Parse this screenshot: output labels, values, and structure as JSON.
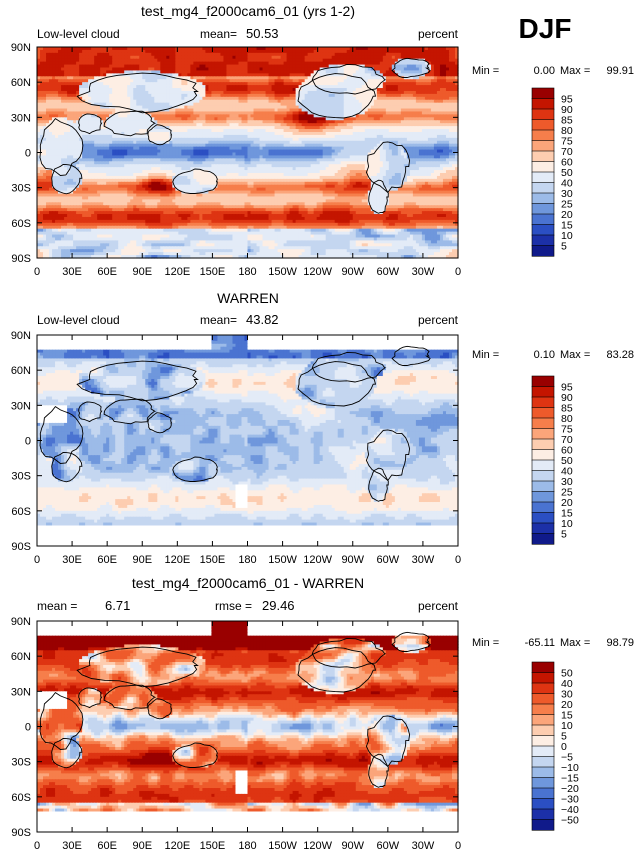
{
  "season_label": "DJF",
  "chart_data": [
    {
      "type": "heatmap",
      "title": "test_mg4_f2000cam6_01 (yrs 1-2)",
      "left_label": "Low-level cloud",
      "mean_label": "mean=",
      "mean_value": "50.53",
      "units": "percent",
      "min_label": "Min =",
      "min_value": "0.00",
      "max_label": "Max =",
      "max_value": "99.91",
      "colorbar_levels": [
        "95",
        "90",
        "85",
        "80",
        "75",
        "70",
        "60",
        "50",
        "40",
        "30",
        "25",
        "20",
        "15",
        "10",
        "5"
      ],
      "colorbar_colors": [
        "#990000",
        "#c41500",
        "#de3412",
        "#ee5a2b",
        "#f67e4b",
        "#fba57a",
        "#fdcdb0",
        "#fdeee4",
        "#e3ebf7",
        "#c4d6f0",
        "#9cbbe8",
        "#6f97dc",
        "#4a73d1",
        "#2b4fc3",
        "#1c30a8",
        "#101a8a"
      ],
      "field": "model_lowcloud"
    },
    {
      "type": "heatmap",
      "title": "WARREN",
      "left_label": "Low-level cloud",
      "mean_label": "mean=",
      "mean_value": "43.82",
      "units": "percent",
      "min_label": "Min =",
      "min_value": "0.10",
      "max_label": "Max =",
      "max_value": "83.28",
      "colorbar_levels": [
        "95",
        "90",
        "85",
        "80",
        "75",
        "70",
        "60",
        "50",
        "40",
        "30",
        "25",
        "20",
        "15",
        "10",
        "5"
      ],
      "colorbar_colors": [
        "#990000",
        "#c41500",
        "#de3412",
        "#ee5a2b",
        "#f67e4b",
        "#fba57a",
        "#fdcdb0",
        "#fdeee4",
        "#e3ebf7",
        "#c4d6f0",
        "#9cbbe8",
        "#6f97dc",
        "#4a73d1",
        "#2b4fc3",
        "#1c30a8",
        "#101a8a"
      ],
      "field": "obs_lowcloud"
    },
    {
      "type": "heatmap",
      "title": "test_mg4_f2000cam6_01 - WARREN",
      "left_label": "mean =",
      "mean_label": "",
      "mean_value": "6.71",
      "rmse_label": "rmse =",
      "rmse_value": "29.46",
      "units": "percent",
      "min_label": "Min =",
      "min_value": "-65.11",
      "max_label": "Max =",
      "max_value": "98.79",
      "colorbar_levels": [
        "50",
        "40",
        "30",
        "20",
        "15",
        "10",
        "5",
        "0",
        "−5",
        "−10",
        "−15",
        "−20",
        "−30",
        "−40",
        "−50"
      ],
      "colorbar_colors": [
        "#990000",
        "#c41500",
        "#de3412",
        "#ee5a2b",
        "#f67e4b",
        "#fba57a",
        "#fdcdb0",
        "#fdeee4",
        "#e3ebf7",
        "#c4d6f0",
        "#9cbbe8",
        "#6f97dc",
        "#4a73d1",
        "#2b4fc3",
        "#1c30a8",
        "#101a8a"
      ],
      "field": "difference"
    }
  ],
  "axes": {
    "lat_ticks": [
      "90N",
      "60N",
      "30N",
      "0",
      "30S",
      "60S",
      "90S"
    ],
    "lon_ticks": [
      "0",
      "30E",
      "60E",
      "90E",
      "120E",
      "150E",
      "180",
      "150W",
      "120W",
      "90W",
      "60W",
      "30W",
      "0"
    ]
  }
}
